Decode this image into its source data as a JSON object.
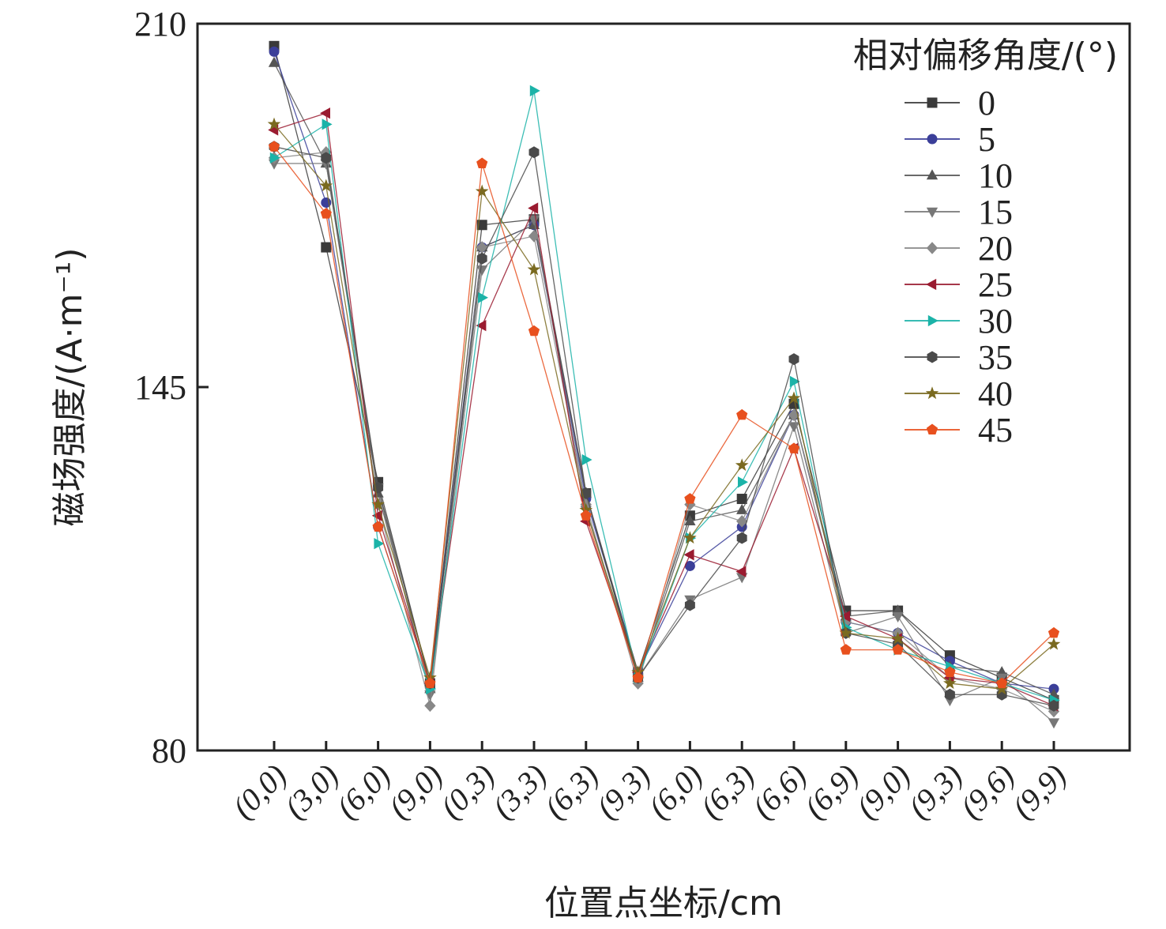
{
  "chart_data": {
    "type": "line",
    "xlabel": "位置点坐标/cm",
    "ylabel": "磁场强度/(A·m⁻¹)",
    "ylim": [
      80,
      210
    ],
    "yticks": [
      80,
      145,
      210
    ],
    "categories": [
      "(0,0)",
      "(3,0)",
      "(6,0)",
      "(9,0)",
      "(0,3)",
      "(3,3)",
      "(6,3)",
      "(9,3)",
      "(6,0)",
      "(6,3)",
      "(6,6)",
      "(6,9)",
      "(9,0)",
      "(9,3)",
      "(9,6)",
      "(9,9)"
    ],
    "legend": {
      "title": "相对偏移角度/(°)",
      "position": "top-right"
    },
    "series": [
      {
        "name": "0",
        "color": "#3a3a3a",
        "marker": "square",
        "values": [
          206,
          170,
          128,
          92,
          174,
          175,
          126,
          94,
          122,
          125,
          142,
          105,
          105,
          97,
          93,
          89
        ]
      },
      {
        "name": "5",
        "color": "#3b3f99",
        "marker": "circle",
        "values": [
          205,
          178,
          120,
          92,
          170,
          174,
          125,
          94,
          113,
          120,
          140,
          103,
          101,
          96,
          92,
          91
        ]
      },
      {
        "name": "10",
        "color": "#555555",
        "marker": "triangle-up",
        "values": [
          203,
          185,
          126,
          91,
          170,
          174,
          126,
          93,
          121,
          123,
          140,
          104,
          105,
          95,
          94,
          90
        ]
      },
      {
        "name": "15",
        "color": "#777777",
        "marker": "triangle-down",
        "values": [
          185,
          185,
          127,
          90,
          166,
          175,
          123,
          93,
          107,
          111,
          138,
          101,
          104,
          89,
          93,
          85
        ]
      },
      {
        "name": "20",
        "color": "#888888",
        "marker": "diamond",
        "values": [
          186,
          187,
          124,
          88,
          170,
          172,
          124,
          92,
          124,
          121,
          140,
          103,
          101,
          93,
          91,
          87
        ]
      },
      {
        "name": "25",
        "color": "#9a1b30",
        "marker": "triangle-left",
        "values": [
          191,
          194,
          122,
          92,
          156,
          177,
          121,
          94,
          115,
          112,
          134,
          104,
          100,
          93,
          92,
          88
        ]
      },
      {
        "name": "30",
        "color": "#1bb3a8",
        "marker": "triangle-right",
        "values": [
          186,
          192,
          117,
          91,
          161,
          198,
          132,
          93,
          118,
          128,
          146,
          102,
          98,
          95,
          92,
          89
        ]
      },
      {
        "name": "35",
        "color": "#4a4a4a",
        "marker": "hexagon",
        "values": [
          188,
          186,
          127,
          92,
          168,
          187,
          126,
          93,
          106,
          118,
          150,
          101,
          99,
          90,
          90,
          88
        ]
      },
      {
        "name": "40",
        "color": "#7a6a20",
        "marker": "star",
        "values": [
          192,
          181,
          124,
          93,
          180,
          166,
          123,
          94,
          118,
          131,
          143,
          101,
          100,
          92,
          91,
          99
        ]
      },
      {
        "name": "45",
        "color": "#e8501e",
        "marker": "pentagon",
        "values": [
          188,
          176,
          120,
          92,
          185,
          155,
          122,
          93,
          125,
          140,
          134,
          98,
          98,
          94,
          92,
          101
        ]
      }
    ]
  }
}
